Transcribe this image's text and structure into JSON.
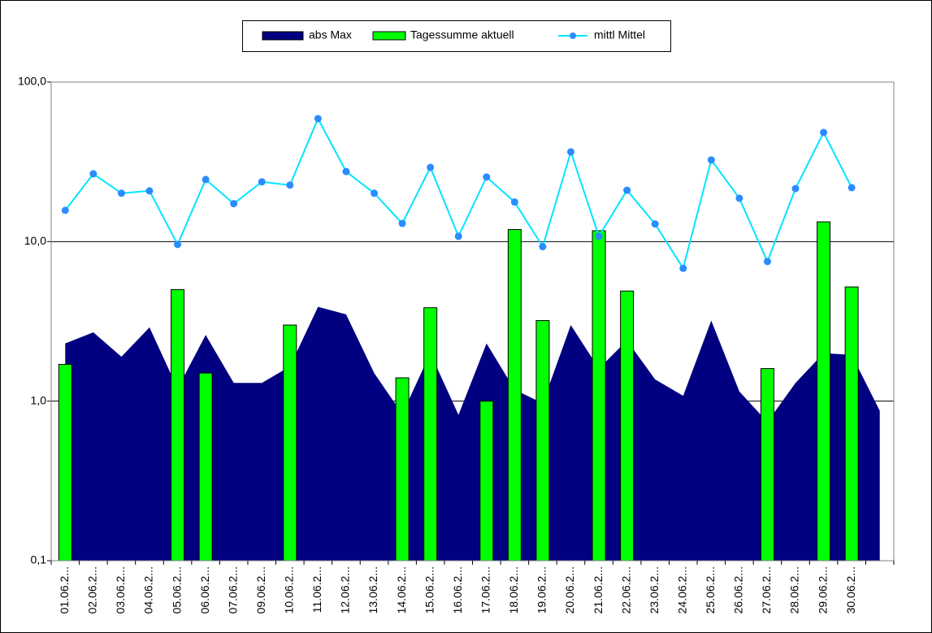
{
  "chart_data": {
    "type": "combo",
    "log_scale": true,
    "grid": true,
    "legend": "top",
    "categories": [
      "01.06.2...",
      "02.06.2...",
      "03.06.2...",
      "04.06.2...",
      "05.06.2...",
      "06.06.2...",
      "07.06.2...",
      "09.06.2...",
      "10.06.2...",
      "11.06.2...",
      "12.06.2...",
      "13.06.2...",
      "14.06.2...",
      "15.06.2...",
      "16.06.2...",
      "17.06.2...",
      "18.06.2...",
      "19.06.2...",
      "20.06.2...",
      "21.06.2...",
      "22.06.2...",
      "23.06.2...",
      "24.06.2...",
      "25.06.2...",
      "26.06.2...",
      "27.06.2...",
      "28.06.2...",
      "29.06.2...",
      "30.06.2...",
      null
    ],
    "ylim": [
      0.1,
      100
    ],
    "yticks": [
      {
        "value": 0.1,
        "label": "0,1"
      },
      {
        "value": 1,
        "label": "1,0"
      },
      {
        "value": 10,
        "label": "10,0"
      },
      {
        "value": 100,
        "label": "100,0"
      }
    ],
    "series": [
      {
        "name": "abs Max",
        "type": "area",
        "color": "#000080",
        "values": [
          2.3,
          2.7,
          1.9,
          2.9,
          1.2,
          2.6,
          1.3,
          1.3,
          1.65,
          3.9,
          3.5,
          1.5,
          0.83,
          2.0,
          0.82,
          2.3,
          1.18,
          0.97,
          3.0,
          1.6,
          2.4,
          1.37,
          1.08,
          3.2,
          1.15,
          0.74,
          1.3,
          2.0,
          1.95,
          0.87
        ]
      },
      {
        "name": "Tagessumme aktuell",
        "type": "bar",
        "color": "#00ff00",
        "values": [
          1.7,
          null,
          null,
          null,
          5.0,
          1.5,
          null,
          null,
          3.0,
          null,
          null,
          null,
          1.4,
          3.85,
          null,
          1.0,
          11.9,
          3.2,
          null,
          11.7,
          4.9,
          null,
          null,
          null,
          null,
          1.6,
          null,
          13.3,
          5.2,
          null
        ]
      },
      {
        "name": "mittl Mittel",
        "type": "line",
        "color": "#00e5ff",
        "marker_color": "#2a8cff",
        "values": [
          15.7,
          26.6,
          20.1,
          20.8,
          9.6,
          24.5,
          17.3,
          23.7,
          22.6,
          59.0,
          27.5,
          20.1,
          13.0,
          29.2,
          10.8,
          25.4,
          17.7,
          9.3,
          36.5,
          10.8,
          21.0,
          12.9,
          6.8,
          32.5,
          18.7,
          7.5,
          21.5,
          48.3,
          21.8,
          null
        ]
      }
    ]
  }
}
